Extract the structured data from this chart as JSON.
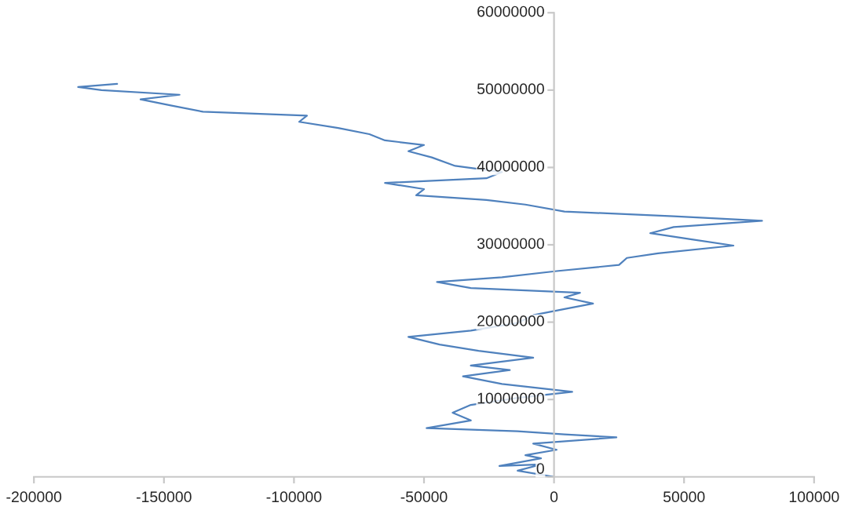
{
  "chart_data": {
    "type": "line",
    "grid": false,
    "marker": "none",
    "line_style": "solid",
    "xlim": [
      -200000,
      100000
    ],
    "ylim": [
      0,
      60000000
    ],
    "xticks": [
      -200000,
      -150000,
      -100000,
      -50000,
      0,
      50000,
      100000
    ],
    "yticks": [
      0,
      10000000,
      20000000,
      30000000,
      40000000,
      50000000,
      60000000
    ],
    "series": [
      {
        "color": "#4f81bd",
        "x": [
          0,
          -14000,
          -5000,
          -21000,
          -5000,
          -11000,
          1000,
          -8000,
          24000,
          4000,
          -14000,
          -49000,
          -32000,
          -39000,
          -32000,
          -14000,
          7000,
          -20000,
          -35000,
          -17000,
          -32000,
          -8000,
          -29000,
          -44000,
          -56000,
          -32000,
          -14000,
          -8000,
          4000,
          15000,
          4000,
          10000,
          -32000,
          -45000,
          -20000,
          1000,
          25000,
          28000,
          40000,
          69000,
          53000,
          37000,
          46000,
          80000,
          46000,
          4000,
          -11000,
          -26000,
          -53000,
          -50000,
          -65000,
          -26000,
          -20000,
          -38000,
          -47000,
          -56000,
          -50000,
          -65000,
          -71000,
          -83000,
          -98000,
          -95000,
          -135000,
          -147000,
          -159000,
          -144000,
          -174000,
          -183000,
          -168000
        ],
        "values": [
          0,
          800000,
          1600000,
          1400000,
          2400000,
          2800000,
          3500000,
          4300000,
          5100000,
          5500000,
          5900000,
          6300000,
          7300000,
          8300000,
          9300000,
          10200000,
          11000000,
          12000000,
          13000000,
          13800000,
          14400000,
          15400000,
          16300000,
          17100000,
          18100000,
          18900000,
          19900000,
          20900000,
          21700000,
          22400000,
          23200000,
          23800000,
          24400000,
          25200000,
          25800000,
          26600000,
          27400000,
          28300000,
          28900000,
          29900000,
          30700000,
          31500000,
          32300000,
          33100000,
          33700000,
          34300000,
          35200000,
          35800000,
          36400000,
          37200000,
          38000000,
          38600000,
          39400000,
          40200000,
          41300000,
          42100000,
          42900000,
          43500000,
          44300000,
          45100000,
          45900000,
          46700000,
          47200000,
          48000000,
          48800000,
          49400000,
          50000000,
          50400000,
          50800000
        ]
      }
    ]
  }
}
